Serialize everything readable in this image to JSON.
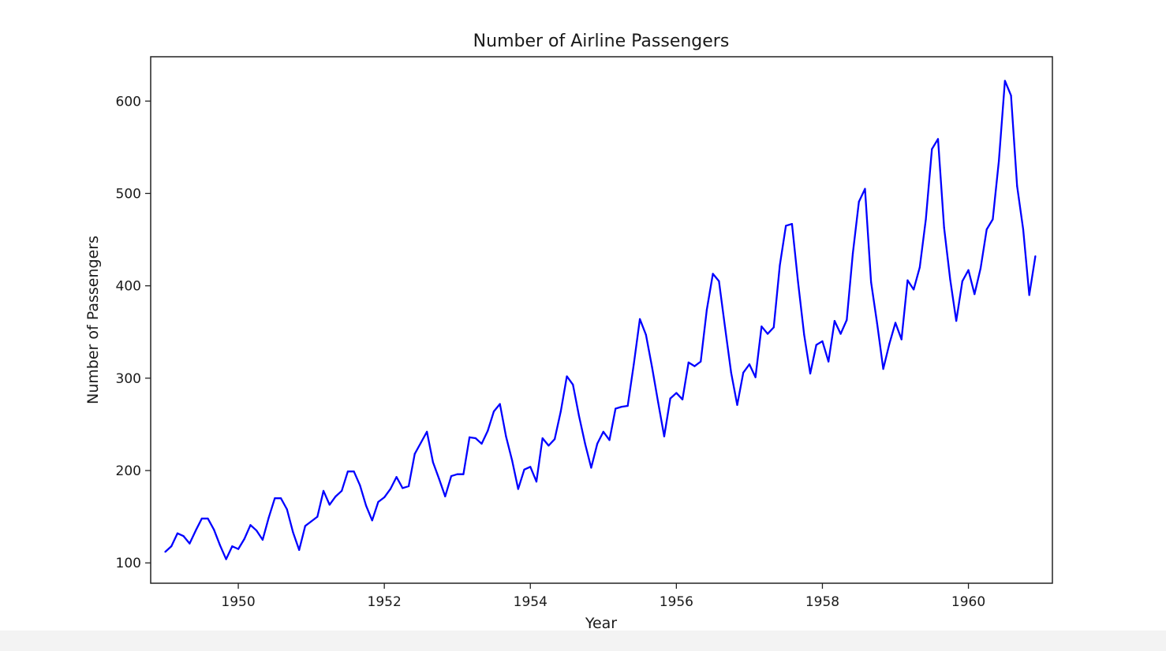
{
  "chart_data": {
    "type": "line",
    "title": "Number of Airline Passengers",
    "xlabel": "Year",
    "ylabel": "Number of Passengers",
    "xlim": [
      1948.8,
      1961.15
    ],
    "ylim": [
      78,
      648
    ],
    "grid": false,
    "x_ticks": [
      1950,
      1952,
      1954,
      1956,
      1958,
      1960
    ],
    "x_tick_labels": [
      "1950",
      "1952",
      "1954",
      "1956",
      "1958",
      "1960"
    ],
    "y_ticks": [
      100,
      200,
      300,
      400,
      500,
      600
    ],
    "y_tick_labels": [
      "100",
      "200",
      "300",
      "400",
      "500",
      "600"
    ],
    "series": [
      {
        "color": "#0000ff",
        "x_start": 1949.0,
        "x_step": 0.083333,
        "values": [
          112,
          118,
          132,
          129,
          121,
          135,
          148,
          148,
          136,
          119,
          104,
          118,
          115,
          126,
          141,
          135,
          125,
          149,
          170,
          170,
          158,
          133,
          114,
          140,
          145,
          150,
          178,
          163,
          172,
          178,
          199,
          199,
          184,
          162,
          146,
          166,
          171,
          180,
          193,
          181,
          183,
          218,
          230,
          242,
          209,
          191,
          172,
          194,
          196,
          196,
          236,
          235,
          229,
          243,
          264,
          272,
          237,
          211,
          180,
          201,
          204,
          188,
          235,
          227,
          234,
          264,
          302,
          293,
          259,
          229,
          203,
          229,
          242,
          233,
          267,
          269,
          270,
          315,
          364,
          347,
          312,
          274,
          237,
          278,
          284,
          277,
          317,
          313,
          318,
          374,
          413,
          405,
          355,
          306,
          271,
          306,
          315,
          301,
          356,
          348,
          355,
          422,
          465,
          467,
          404,
          347,
          305,
          336,
          340,
          318,
          362,
          348,
          363,
          435,
          491,
          505,
          404,
          359,
          310,
          337,
          360,
          342,
          406,
          396,
          420,
          472,
          548,
          559,
          463,
          407,
          362,
          405,
          417,
          391,
          419,
          461,
          472,
          535,
          622,
          606,
          508,
          461,
          390,
          432
        ]
      }
    ]
  }
}
